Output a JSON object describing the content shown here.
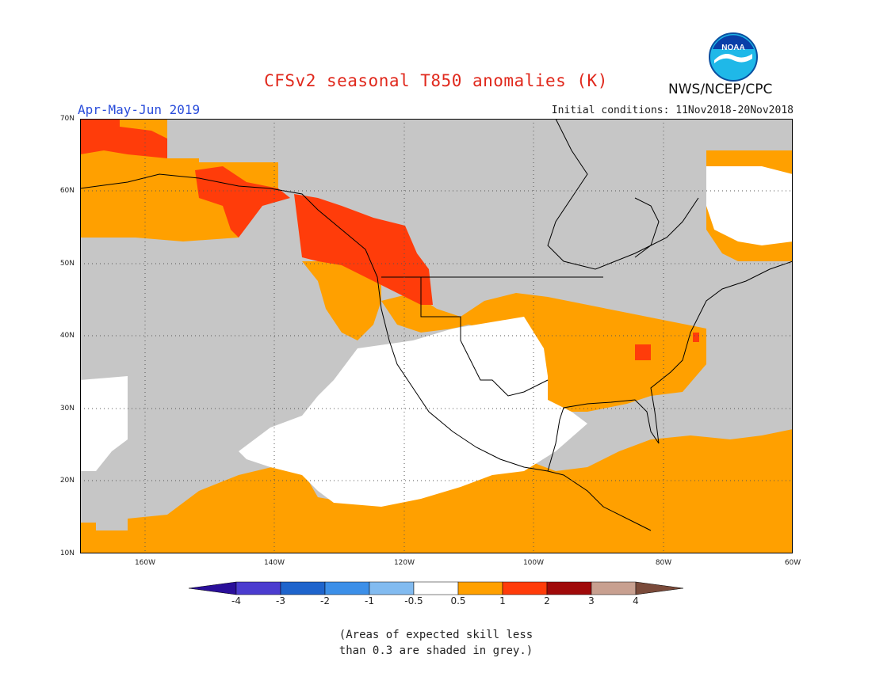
{
  "header": {
    "title": "CFSv2 seasonal T850 anomalies (K)",
    "agency": "NWS/NCEP/CPC",
    "logo_text": "NOAA",
    "season": "Apr-May-Jun 2019",
    "initial_conditions": "Initial conditions: 11Nov2018-20Nov2018"
  },
  "map": {
    "lat_labels": [
      "70N",
      "60N",
      "50N",
      "40N",
      "30N",
      "20N",
      "10N"
    ],
    "lon_labels": [
      "160W",
      "140W",
      "120W",
      "100W",
      "80W",
      "60W"
    ],
    "region": "North America and adjacent Pacific/Atlantic",
    "lat_range": [
      10,
      70
    ],
    "lon_range": [
      -170,
      -60
    ],
    "colors": {
      "grey_low_skill": "#c6c6c6",
      "neutral": "#ffffff",
      "anomaly_0_5_to_1": "#ffa000",
      "anomaly_1_to_2": "#ff3c0a",
      "coastline": "#000000"
    }
  },
  "colorbar": {
    "labels": [
      "-4",
      "-3",
      "-2",
      "-1",
      "-0.5",
      "0.5",
      "1",
      "2",
      "3",
      "4"
    ],
    "colors": [
      "#2a0f9a",
      "#4b3ccf",
      "#1e64cc",
      "#3c8fe8",
      "#82bbf0",
      "#ffffff",
      "#ffa000",
      "#ff3c0a",
      "#a00a0a",
      "#c8a090",
      "#7a4a3a"
    ]
  },
  "note": {
    "line1": "(Areas of expected skill less",
    "line2": "than 0.3 are shaded in grey.)"
  }
}
